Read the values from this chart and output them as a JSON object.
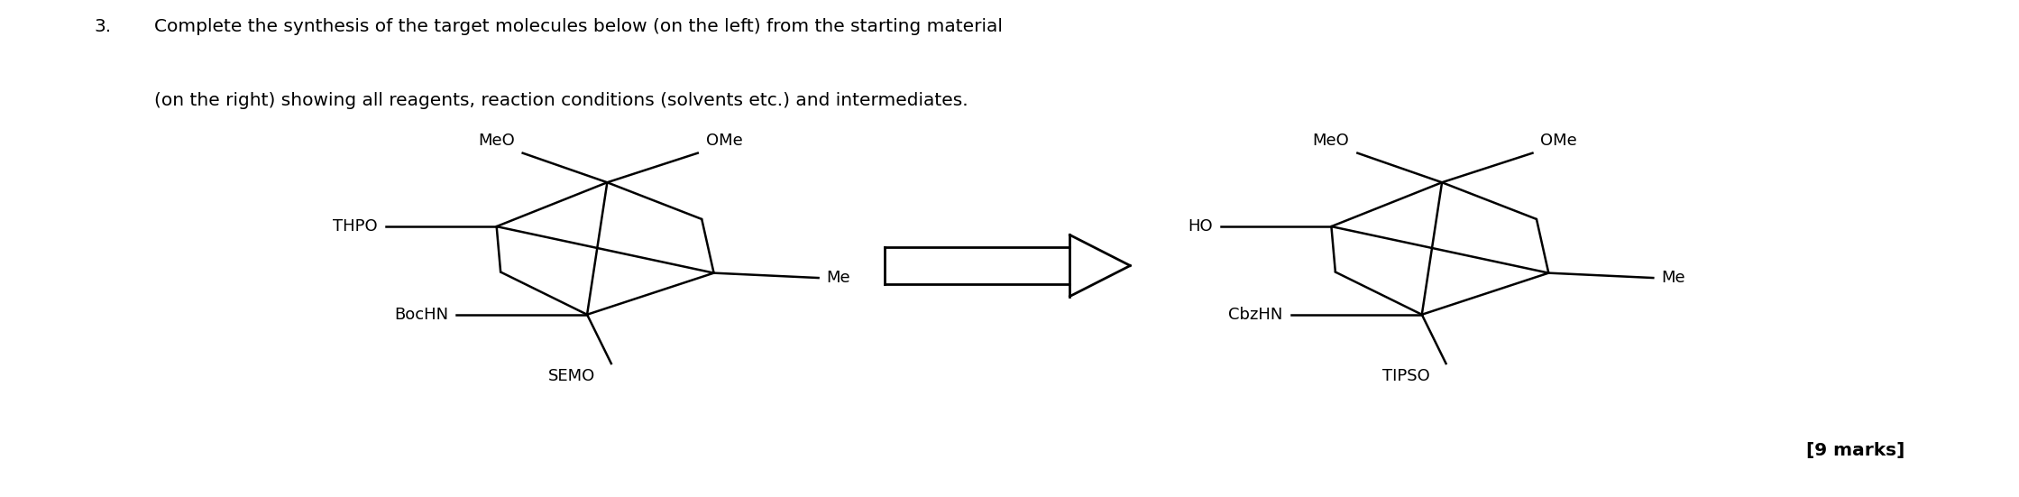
{
  "title_number": "3.",
  "title_text": "Complete the synthesis of the target molecules below (on the left) from the starting material",
  "title_text2": "(on the right) showing all reagents, reaction conditions (solvents etc.) and intermediates.",
  "title_fontsize": 14.5,
  "label_fontsize": 13.0,
  "marks_text": "[9 marks]",
  "background_color": "#ffffff",
  "text_color": "#000000",
  "fig_width": 22.39,
  "fig_height": 5.51
}
